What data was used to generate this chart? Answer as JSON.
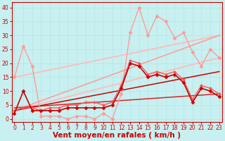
{
  "title": "",
  "xlabel": "Vent moyen/en rafales ( km/h )",
  "ylabel": "",
  "xlim": [
    -0.3,
    23.3
  ],
  "ylim": [
    -1,
    42
  ],
  "background_color": "#c8f0f0",
  "grid_color": "#aadddd",
  "lines": [
    {
      "x": [
        0,
        1,
        2,
        3,
        4,
        5,
        6,
        7,
        8,
        9,
        10,
        11,
        12,
        13,
        14,
        15,
        16,
        17,
        18,
        19,
        20,
        21,
        22,
        23
      ],
      "y": [
        15,
        26,
        19,
        1,
        1,
        1,
        0,
        1,
        1,
        0,
        2,
        0,
        9,
        31,
        40,
        30,
        37,
        35,
        29,
        31,
        24,
        19,
        25,
        22
      ],
      "color": "#ff9999",
      "lw": 1.0,
      "marker": "D",
      "ms": 2.5,
      "zorder": 3
    },
    {
      "x": [
        0,
        1,
        2,
        3,
        4,
        5,
        6,
        7,
        8,
        9,
        10,
        11,
        12,
        13,
        14,
        15,
        16,
        17,
        18,
        19,
        20,
        21,
        22,
        23
      ],
      "y": [
        2,
        10,
        3,
        3,
        3,
        3,
        4,
        4,
        4,
        4,
        4,
        5,
        11,
        20,
        19,
        15,
        16,
        15,
        16,
        13,
        6,
        11,
        10,
        8
      ],
      "color": "#cc0000",
      "lw": 1.2,
      "marker": "D",
      "ms": 2.5,
      "zorder": 4
    },
    {
      "x": [
        0,
        1,
        2,
        3,
        4,
        5,
        6,
        7,
        8,
        9,
        10,
        11,
        12,
        13,
        14,
        15,
        16,
        17,
        18,
        19,
        20,
        21,
        22,
        23
      ],
      "y": [
        3,
        4,
        4,
        3,
        4,
        4,
        5,
        5,
        6,
        6,
        5,
        6,
        12,
        21,
        20,
        16,
        17,
        16,
        17,
        14,
        7,
        12,
        11,
        9
      ],
      "color": "#ff5555",
      "lw": 1.0,
      "marker": "D",
      "ms": 2.0,
      "zorder": 3
    },
    {
      "x": [
        0,
        23
      ],
      "y": [
        3,
        22
      ],
      "color": "#ffbbbb",
      "lw": 1.3,
      "marker": null,
      "ms": 0,
      "zorder": 2
    },
    {
      "x": [
        0,
        23
      ],
      "y": [
        15,
        30
      ],
      "color": "#ffbbbb",
      "lw": 1.3,
      "marker": null,
      "ms": 0,
      "zorder": 2
    },
    {
      "x": [
        0,
        23
      ],
      "y": [
        3,
        30
      ],
      "color": "#ff9999",
      "lw": 1.1,
      "marker": null,
      "ms": 0,
      "zorder": 2
    },
    {
      "x": [
        0,
        23
      ],
      "y": [
        4,
        9
      ],
      "color": "#dd2222",
      "lw": 1.1,
      "marker": null,
      "ms": 0,
      "zorder": 2
    },
    {
      "x": [
        0,
        23
      ],
      "y": [
        3,
        17
      ],
      "color": "#cc0000",
      "lw": 1.1,
      "marker": null,
      "ms": 0,
      "zorder": 2
    }
  ],
  "xticks": [
    0,
    1,
    2,
    3,
    4,
    5,
    6,
    7,
    8,
    9,
    10,
    11,
    12,
    13,
    14,
    15,
    16,
    17,
    18,
    19,
    20,
    21,
    22,
    23
  ],
  "yticks": [
    0,
    5,
    10,
    15,
    20,
    25,
    30,
    35,
    40
  ],
  "tick_fontsize": 5.5,
  "label_fontsize": 7.5
}
